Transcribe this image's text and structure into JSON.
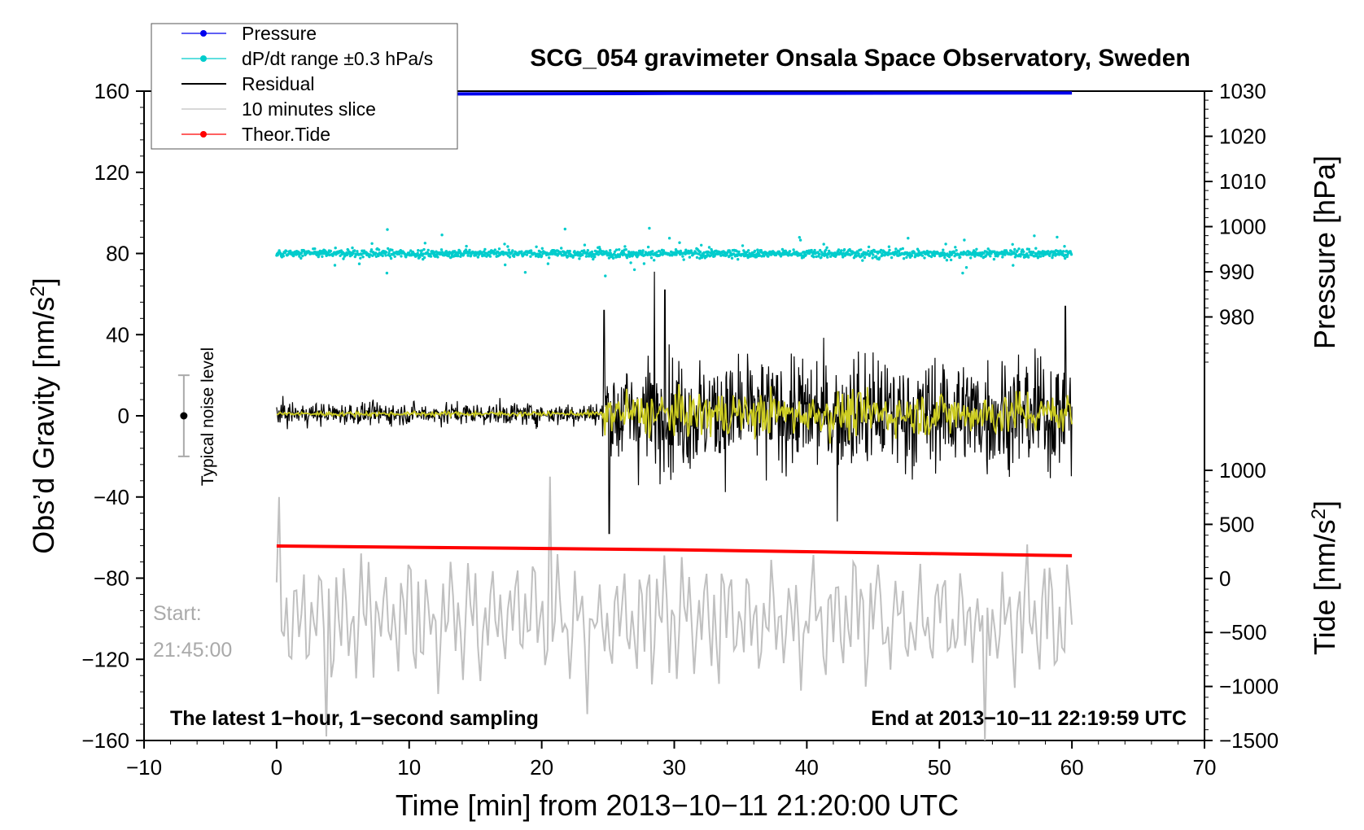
{
  "chart_data": {
    "type": "line",
    "title": "SCG_054 gravimeter Onsala Space Observatory, Sweden",
    "xlabel": "Time [min] from 2013−10−11 21:20:00 UTC",
    "ylabel": "Obs’d Gravity [nm/s²]",
    "ylabel_main": "Obs’d Gravity [nm/s",
    "ylabel_sup": "2",
    "ylabel_close": "]",
    "y2label": "Pressure [hPa]",
    "y3label_main": "Tide [nm/s",
    "y3label_sup": "2",
    "y3label_close": "]",
    "xlim": [
      -10,
      70
    ],
    "ylim": [
      -160,
      160
    ],
    "x_ticks": [
      -10,
      0,
      10,
      20,
      30,
      40,
      50,
      60,
      70
    ],
    "x_tick_labels": [
      "−10",
      "0",
      "10",
      "20",
      "30",
      "40",
      "50",
      "60",
      "70"
    ],
    "y_ticks": [
      160,
      120,
      80,
      40,
      0,
      -40,
      -80,
      -120,
      -160
    ],
    "y_tick_labels": [
      "160",
      "120",
      "80",
      "40",
      "0",
      "−40",
      "−80",
      "−120",
      "−160"
    ],
    "pressure_axis": {
      "range": [
        970,
        1030
      ],
      "ticks": [
        980,
        990,
        1000,
        1010,
        1020,
        1030
      ],
      "tick_labels": [
        "980",
        "990",
        "1000",
        "1010",
        "1020",
        "1030"
      ]
    },
    "tide_axis": {
      "range": [
        -1500,
        1000
      ],
      "ticks": [
        -1500,
        -1000,
        -500,
        0,
        500,
        1000
      ],
      "tick_labels": [
        "−1500",
        "−1000",
        "−500",
        "0",
        "500",
        "1000"
      ]
    },
    "legend": {
      "location": "top-left",
      "entries": [
        {
          "label": "Pressure",
          "color": "#0000ee"
        },
        {
          "label": "dP/dt range ±0.3 hPa/s",
          "color": "#00cccc"
        },
        {
          "label": "Residual",
          "color": "#000000"
        },
        {
          "label": "10 minutes slice",
          "color": "#c0c0c0"
        },
        {
          "label": "Theor.Tide",
          "color": "#ff0000"
        }
      ]
    },
    "series": [
      {
        "name": "Pressure",
        "axis": "pressure",
        "color": "#0000ee",
        "x": [
          0,
          30,
          60
        ],
        "values": [
          1029.3,
          1029.5,
          1029.6
        ]
      },
      {
        "name": "dP/dt range ±0.3 hPa/s",
        "axis": "left",
        "color": "#00cccc",
        "center": 80,
        "spread": 5,
        "x_range": [
          0,
          60
        ]
      },
      {
        "name": "Residual",
        "axis": "left",
        "color": "#000000",
        "x_range": [
          0,
          60
        ],
        "quiet_until": 24.6,
        "quiet_amplitude": 5,
        "active_amplitude": 25,
        "extremes": [
          [
            24.7,
            52
          ],
          [
            25.1,
            -58
          ],
          [
            28.5,
            71
          ],
          [
            29.3,
            62
          ],
          [
            42.3,
            -52
          ],
          [
            59.5,
            54
          ]
        ]
      },
      {
        "name": "Smoothed residual",
        "axis": "left",
        "color": "#cccc22",
        "x_range": [
          0,
          60
        ],
        "quiet_amplitude": 1,
        "active_amplitude": 10
      },
      {
        "name": "10 minutes slice",
        "axis": "left",
        "color": "#c0c0c0",
        "x_range": [
          0,
          60
        ],
        "center": -100,
        "amplitude": 30,
        "extremes": [
          [
            0.2,
            -40
          ],
          [
            3.8,
            -158
          ],
          [
            20.7,
            -30
          ],
          [
            23.4,
            -147
          ],
          [
            53.4,
            -162
          ]
        ]
      },
      {
        "name": "Theor.Tide",
        "axis": "tide",
        "color": "#ff0000",
        "x": [
          0,
          30,
          60
        ],
        "values": [
          300,
          265,
          210
        ]
      }
    ],
    "annotations": {
      "noise_level_label": "Typical noise level",
      "noise_level_x": -7,
      "noise_level_range": [
        -20,
        20
      ],
      "start_label": "Start:",
      "start_time": "21:45:00",
      "bottom_left": "The latest 1−hour, 1−second sampling",
      "bottom_right": "End at 2013−10−11 22:19:59 UTC"
    }
  }
}
